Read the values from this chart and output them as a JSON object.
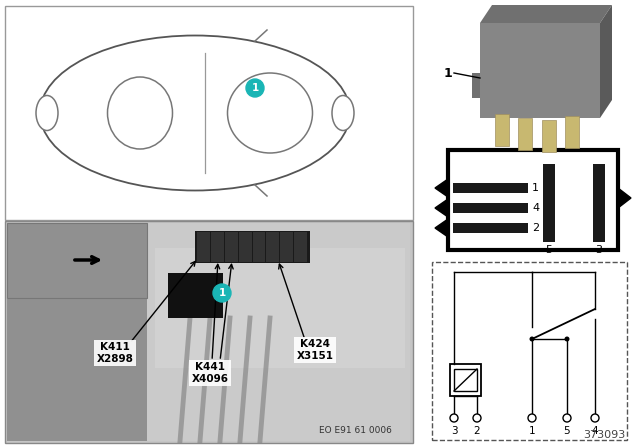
{
  "bg_color": "#ffffff",
  "eo_text": "EO E91 61 0006",
  "part_number": "373093",
  "cyan_color": "#1ab5b5",
  "photo_bg": "#b8b8b8",
  "photo_bg2": "#c5c5c5",
  "inset_bg": "#909090",
  "car_box_color": "#cccccc",
  "black": "#000000",
  "dark_gray": "#2a2a2a",
  "med_gray": "#666666",
  "light_gray": "#aaaaaa",
  "relay_gray": "#7a7a7a",
  "pin_beige": "#c8b878",
  "label_keys": [
    "K411\nX2898",
    "K441\nX4096",
    "K424\nX3151"
  ],
  "pin_left_labels": [
    "2",
    "4",
    "1"
  ],
  "pin_right_label": "3",
  "pin_center_label": "5",
  "term_labels": [
    "3",
    "2",
    "1",
    "5",
    "4"
  ]
}
